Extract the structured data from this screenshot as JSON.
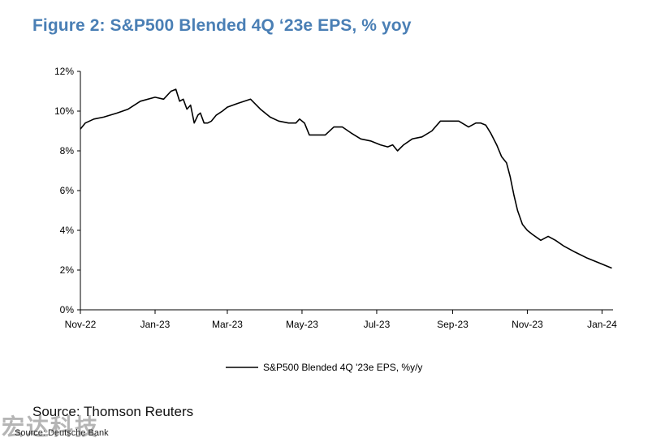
{
  "title": "Figure 2: S&P500 Blended 4Q ‘23e EPS, % yoy",
  "source_primary": "Source: Thomson Reuters",
  "source_secondary": "Source: Deutsche Bank",
  "watermark": "宏达科技",
  "colors": {
    "title": "#4a7fb5",
    "line": "#000000",
    "axis": "#000000"
  },
  "chart_data": {
    "type": "line",
    "title": "Figure 2: S&P500 Blended 4Q ‘23e EPS, % yoy",
    "xlabel": "",
    "ylabel": "",
    "ylim": [
      0,
      12
    ],
    "y_ticks": [
      0,
      2,
      4,
      6,
      8,
      10,
      12
    ],
    "y_tick_labels": [
      "0%",
      "2%",
      "4%",
      "6%",
      "8%",
      "10%",
      "12%"
    ],
    "x_tick_labels": [
      "Nov-22",
      "Jan-23",
      "Mar-23",
      "May-23",
      "Jul-23",
      "Sep-23",
      "Nov-23",
      "Jan-24"
    ],
    "x_tick_dates": [
      "2022-11-01",
      "2023-01-01",
      "2023-03-01",
      "2023-05-01",
      "2023-07-01",
      "2023-09-01",
      "2023-11-01",
      "2024-01-01"
    ],
    "xlim": [
      "2022-11-01",
      "2024-01-10"
    ],
    "grid": false,
    "legend_position": "bottom",
    "series": [
      {
        "name": "S&P500 Blended 4Q '23e EPS, %y/y",
        "x": [
          "2022-11-01",
          "2022-11-05",
          "2022-11-12",
          "2022-11-20",
          "2022-12-01",
          "2022-12-10",
          "2022-12-20",
          "2023-01-01",
          "2023-01-08",
          "2023-01-14",
          "2023-01-18",
          "2023-01-21",
          "2023-01-24",
          "2023-01-27",
          "2023-01-30",
          "2023-02-02",
          "2023-02-05",
          "2023-02-07",
          "2023-02-10",
          "2023-02-13",
          "2023-02-16",
          "2023-02-20",
          "2023-02-25",
          "2023-03-01",
          "2023-03-10",
          "2023-03-20",
          "2023-03-28",
          "2023-04-05",
          "2023-04-12",
          "2023-04-20",
          "2023-04-26",
          "2023-04-29",
          "2023-05-03",
          "2023-05-07",
          "2023-05-12",
          "2023-05-20",
          "2023-05-27",
          "2023-06-03",
          "2023-06-10",
          "2023-06-18",
          "2023-06-26",
          "2023-07-04",
          "2023-07-10",
          "2023-07-14",
          "2023-07-18",
          "2023-07-23",
          "2023-07-30",
          "2023-08-07",
          "2023-08-15",
          "2023-08-22",
          "2023-08-30",
          "2023-09-06",
          "2023-09-14",
          "2023-09-20",
          "2023-09-24",
          "2023-09-28",
          "2023-10-02",
          "2023-10-07",
          "2023-10-11",
          "2023-10-15",
          "2023-10-18",
          "2023-10-21",
          "2023-10-24",
          "2023-10-28",
          "2023-11-01",
          "2023-11-05",
          "2023-11-12",
          "2023-11-18",
          "2023-11-24",
          "2023-12-01",
          "2023-12-10",
          "2023-12-20",
          "2024-01-01",
          "2024-01-09"
        ],
        "values": [
          9.1,
          9.4,
          9.6,
          9.7,
          9.9,
          10.1,
          10.5,
          10.7,
          10.6,
          11.0,
          11.1,
          10.5,
          10.6,
          10.1,
          10.3,
          9.4,
          9.8,
          9.9,
          9.4,
          9.4,
          9.5,
          9.8,
          10.0,
          10.2,
          10.4,
          10.6,
          10.1,
          9.7,
          9.5,
          9.4,
          9.4,
          9.6,
          9.4,
          8.8,
          8.8,
          8.8,
          9.2,
          9.2,
          8.9,
          8.6,
          8.5,
          8.3,
          8.2,
          8.3,
          8.0,
          8.3,
          8.6,
          8.7,
          9.0,
          9.5,
          9.5,
          9.5,
          9.2,
          9.4,
          9.4,
          9.3,
          8.9,
          8.3,
          7.7,
          7.4,
          6.7,
          5.8,
          5.0,
          4.3,
          4.0,
          3.8,
          3.5,
          3.7,
          3.5,
          3.2,
          2.9,
          2.6,
          2.3,
          2.1
        ]
      }
    ]
  }
}
